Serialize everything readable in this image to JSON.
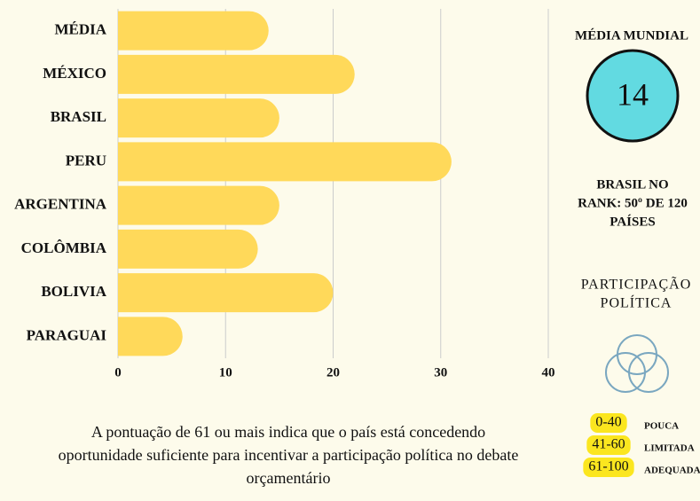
{
  "chart_data": {
    "type": "bar",
    "orientation": "horizontal",
    "categories": [
      "MÉDIA",
      "MÉXICO",
      "BRASIL",
      "PERU",
      "ARGENTINA",
      "COLÔMBIA",
      "BOLIVIA",
      "PARAGUAI"
    ],
    "values": [
      14,
      22,
      15,
      31,
      15,
      13,
      20,
      6
    ],
    "color": "#ffd95a",
    "xlim": [
      0,
      40
    ],
    "xticks": [
      0,
      10,
      20,
      30,
      40
    ],
    "grid": true
  },
  "world_average": {
    "label": "MÉDIA MUNDIAL",
    "value": 14
  },
  "rank_text": [
    "BRASIL NO",
    "RANK: 50º DE 120",
    "PAÍSES"
  ],
  "topic": [
    "PARTICIPAÇÃO",
    "POLÍTICA"
  ],
  "scale_legend": [
    {
      "range": "0-40",
      "label": "POUCA"
    },
    {
      "range": "41-60",
      "label": "LIMITADA"
    },
    {
      "range": "61-100",
      "label": "ADEQUADA"
    }
  ],
  "footnote": [
    "A pontuação de 61 ou mais indica que o país está concedendo",
    "oportunidade suficiente para incentivar a participação política no debate",
    "orçamentário"
  ]
}
